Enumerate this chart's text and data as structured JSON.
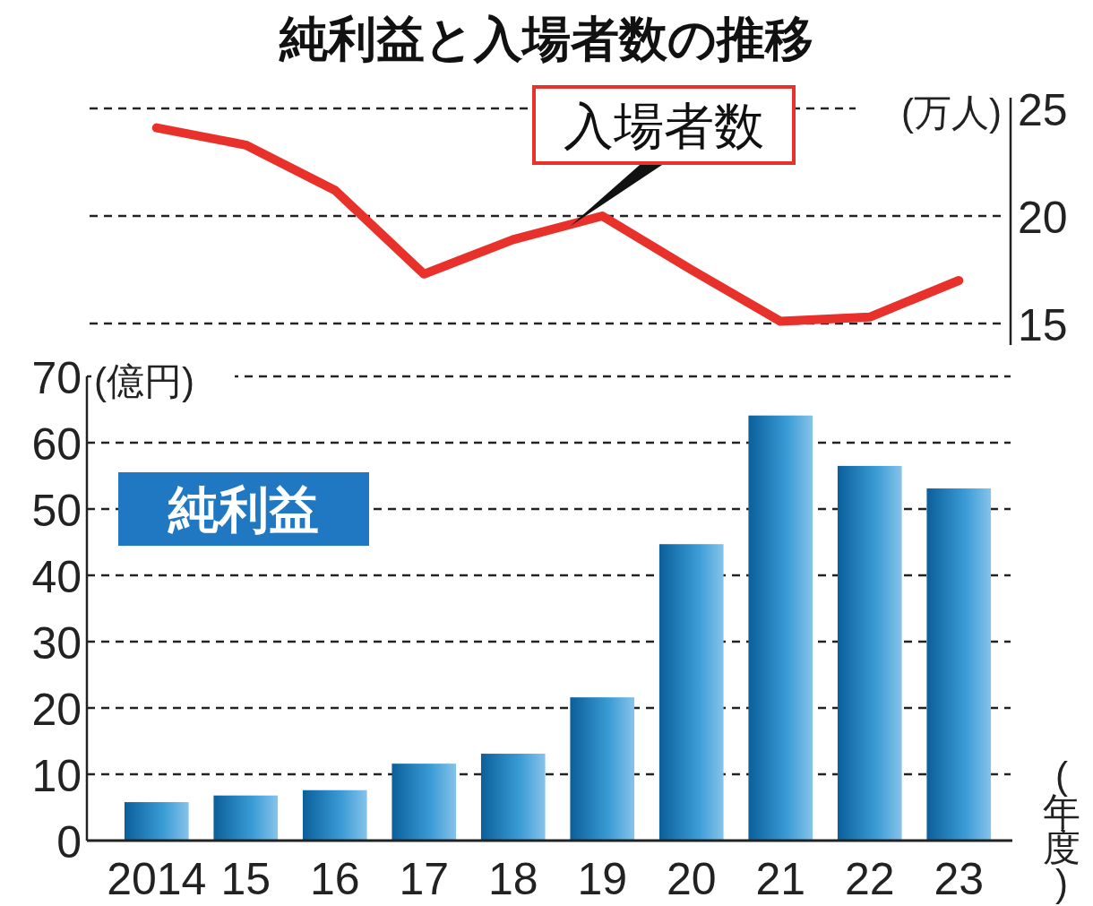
{
  "chart_data": [
    {
      "type": "line",
      "title": "純利益と入場者数の推移",
      "ylabel": "(万人)",
      "categories": [
        "2014",
        "15",
        "16",
        "17",
        "18",
        "19",
        "20",
        "21",
        "22",
        "23"
      ],
      "series": [
        {
          "name": "入場者数",
          "color": "#e8312a",
          "values": [
            24.1,
            23.3,
            21.2,
            17.3,
            18.9,
            20.0,
            17.5,
            15.1,
            15.3,
            17.0
          ]
        }
      ],
      "ylim": [
        14,
        25.5
      ],
      "yticks": [
        15,
        20,
        25
      ],
      "grid": "y",
      "tick_labels": "y",
      "marker": "none",
      "line_style": "solid"
    },
    {
      "type": "bar",
      "ylabel": "(億円)",
      "xlabel": "(年度)",
      "categories": [
        "2014",
        "15",
        "16",
        "17",
        "18",
        "19",
        "20",
        "21",
        "22",
        "23"
      ],
      "series": [
        {
          "name": "純利益",
          "color": "#3a9bd5",
          "values": [
            5.8,
            6.8,
            7.6,
            11.6,
            13.1,
            21.6,
            44.7,
            64.1,
            56.5,
            53.1
          ]
        }
      ],
      "ylim": [
        0,
        70
      ],
      "yticks": [
        0,
        10,
        20,
        30,
        40,
        50,
        60,
        70
      ],
      "grid": "y"
    }
  ]
}
